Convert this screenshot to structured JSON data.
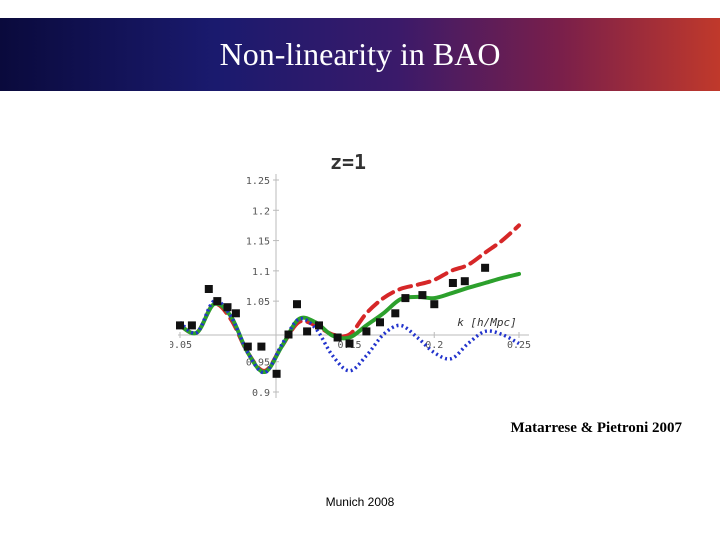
{
  "slide": {
    "title": "Non-linearity in BAO",
    "credit": "Matarrese & Pietroni 2007",
    "footer": "Munich 2008"
  },
  "chart_data": {
    "type": "line",
    "title": "z=1",
    "xlabel": "k [h/Mpc]",
    "ylabel": "",
    "xlim": [
      0.05,
      0.25
    ],
    "ylim": [
      0.9,
      1.25
    ],
    "y_ticks": [
      "1.25",
      "1.2",
      "1.15",
      "1.1",
      "1.05",
      "0.95",
      "0.9"
    ],
    "x_tick_labels": [
      "0.05",
      "0.15",
      "0.2",
      "0.25"
    ],
    "grid": false,
    "series": [
      {
        "color": "#d62728",
        "style": "dashed",
        "x": [
          0.05,
          0.06,
          0.07,
          0.08,
          0.09,
          0.1,
          0.11,
          0.12,
          0.13,
          0.14,
          0.15,
          0.16,
          0.17,
          0.18,
          0.19,
          0.2,
          0.21,
          0.22,
          0.23,
          0.24,
          0.25
        ],
        "y": [
          1.01,
          0.998,
          1.045,
          1.02,
          0.965,
          0.935,
          0.975,
          1.015,
          1.01,
          0.995,
          0.995,
          1.03,
          1.055,
          1.07,
          1.077,
          1.085,
          1.1,
          1.11,
          1.13,
          1.15,
          1.175
        ]
      },
      {
        "color": "#2ca02c",
        "style": "solid",
        "x": [
          0.05,
          0.06,
          0.07,
          0.08,
          0.09,
          0.1,
          0.11,
          0.12,
          0.13,
          0.14,
          0.15,
          0.16,
          0.17,
          0.18,
          0.19,
          0.2,
          0.21,
          0.22,
          0.23,
          0.24,
          0.25
        ],
        "y": [
          1.01,
          0.998,
          1.045,
          1.025,
          0.965,
          0.933,
          0.975,
          1.02,
          1.015,
          0.993,
          0.99,
          1.01,
          1.03,
          1.053,
          1.057,
          1.055,
          1.063,
          1.072,
          1.08,
          1.088,
          1.095
        ]
      },
      {
        "color": "#2233cc",
        "style": "dotted",
        "x": [
          0.05,
          0.06,
          0.07,
          0.08,
          0.09,
          0.1,
          0.11,
          0.12,
          0.13,
          0.14,
          0.15,
          0.16,
          0.17,
          0.18,
          0.19,
          0.2,
          0.21,
          0.22,
          0.23,
          0.24,
          0.25
        ],
        "y": [
          1.015,
          0.998,
          1.05,
          1.025,
          0.965,
          0.932,
          0.978,
          1.02,
          1.005,
          0.96,
          0.935,
          0.96,
          0.995,
          1.01,
          0.99,
          0.965,
          0.955,
          0.98,
          1.0,
          0.995,
          0.98
        ]
      }
    ],
    "points": {
      "color": "#111111",
      "x": [
        0.05,
        0.057,
        0.067,
        0.072,
        0.078,
        0.083,
        0.09,
        0.098,
        0.107,
        0.114,
        0.119,
        0.125,
        0.132,
        0.143,
        0.15,
        0.16,
        0.168,
        0.177,
        0.183,
        0.193,
        0.2,
        0.211,
        0.218,
        0.23
      ],
      "y": [
        1.01,
        1.01,
        1.07,
        1.05,
        1.04,
        1.03,
        0.975,
        0.975,
        0.93,
        0.995,
        1.045,
        1.0,
        1.01,
        0.99,
        0.98,
        1.0,
        1.015,
        1.03,
        1.055,
        1.06,
        1.045,
        1.08,
        1.083,
        1.105
      ]
    }
  }
}
